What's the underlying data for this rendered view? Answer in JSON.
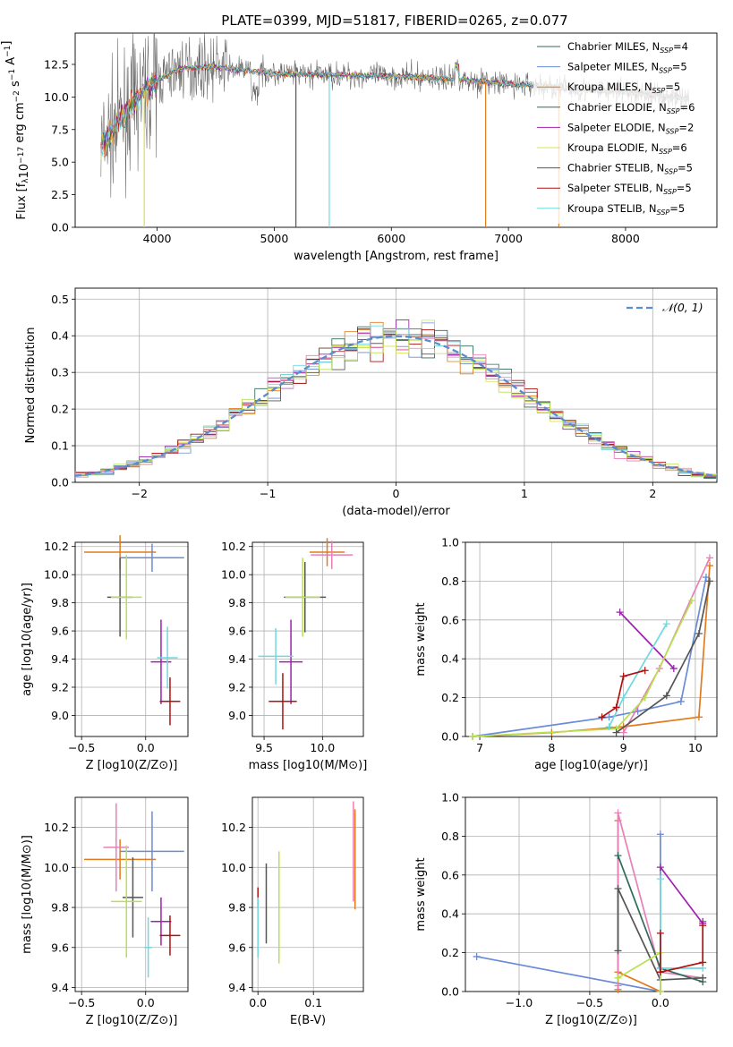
{
  "title": "PLATE=0399, MJD=51817, FIBERID=0265, z=0.077",
  "colors": {
    "chabrier_miles": "#6a8bd8",
    "salpeter_miles": "#e07b1f",
    "kroupa_miles": "#e07b1f",
    "chabrier_elodie": "#2f6b5a",
    "salpeter_elodie": "#a020b0",
    "kroupa_elodie": "#d8e050",
    "chabrier_stelib": "#555555",
    "salpeter_stelib": "#b01010",
    "kroupa_stelib": "#70d8e0",
    "pink": "#e87fb8",
    "lime": "#b8e050",
    "normal_fit": "#5b8bd0",
    "grid": "#b0b0b0"
  },
  "chart_data": [
    {
      "id": "spectrum",
      "type": "line",
      "xlabel": "wavelength [Angstrom, rest frame]",
      "ylabel": "Flux [f_λ10^-17 erg cm^-2 s^-1 A^-1]",
      "xlim": [
        3300,
        8780
      ],
      "ylim": [
        0,
        14.9
      ],
      "xticks": [
        4000,
        5000,
        6000,
        7000,
        8000
      ],
      "yticks": [
        0.0,
        2.5,
        5.0,
        7.5,
        10.0,
        12.5
      ],
      "grid": false,
      "legend_position": "top-right",
      "legend": [
        {
          "label": "Chabrier MILES, N",
          "sub": "SSP",
          "value": "=4",
          "color": "#2f6b5a"
        },
        {
          "label": "Salpeter MILES, N",
          "sub": "SSP",
          "value": "=5",
          "color": "#6a8bd8"
        },
        {
          "label": "Kroupa MILES, N",
          "sub": "SSP",
          "value": "=5",
          "color": "#e07b1f"
        },
        {
          "label": "Chabrier ELODIE, N",
          "sub": "SSP",
          "value": "=6",
          "color": "#2f6b5a"
        },
        {
          "label": "Salpeter ELODIE, N",
          "sub": "SSP",
          "value": "=2",
          "color": "#a020b0"
        },
        {
          "label": "Kroupa ELODIE, N",
          "sub": "SSP",
          "value": "=6",
          "color": "#d8e050"
        },
        {
          "label": "Chabrier STELIB, N",
          "sub": "SSP",
          "value": "=5",
          "color": "#555555"
        },
        {
          "label": "Salpeter STELIB, N",
          "sub": "SSP",
          "value": "=5",
          "color": "#b01010"
        },
        {
          "label": "Kroupa STELIB, N",
          "sub": "SSP",
          "value": "=5",
          "color": "#70d8e0"
        }
      ],
      "data_anchor": {
        "x": [
          3550,
          3700,
          3900,
          4050,
          4200,
          4500,
          5000,
          5500,
          6000,
          6500,
          7000,
          7300,
          7600,
          8000,
          8500
        ],
        "y": [
          6.5,
          8.5,
          10.5,
          11.5,
          12.2,
          12.3,
          11.8,
          11.7,
          11.6,
          11.4,
          11.0,
          10.8,
          10.6,
          10.4,
          9.9
        ]
      }
    },
    {
      "id": "residuals",
      "type": "step",
      "xlabel": "(data-model)/error",
      "ylabel": "Normed distribution",
      "xlim": [
        -2.5,
        2.5
      ],
      "ylim": [
        0,
        0.53
      ],
      "xticks": [
        -2,
        -1,
        0,
        1,
        2
      ],
      "yticks": [
        0.0,
        0.1,
        0.2,
        0.3,
        0.4,
        0.5
      ],
      "grid": true,
      "legend_position": "top-right",
      "legend_label": "𝒩(0, 1)"
    },
    {
      "id": "age_vs_Z",
      "type": "errorbar",
      "xlabel": "Z [log10(Z/Z⊙)]",
      "ylabel": "age  [log10(age/yr)]",
      "xlim": [
        -0.55,
        0.33
      ],
      "ylim": [
        8.85,
        10.23
      ],
      "xticks": [
        -0.5,
        0.0
      ],
      "yticks": [
        9.0,
        9.2,
        9.4,
        9.6,
        9.8,
        10.0,
        10.2
      ],
      "grid": true,
      "points": [
        {
          "x": -0.2,
          "y": 10.16,
          "xerr": 0.28,
          "yerr": 0.12,
          "color": "#e07b1f"
        },
        {
          "x": 0.05,
          "y": 10.12,
          "xerr": 0.25,
          "yerr": 0.1,
          "color": "#6a8bd8"
        },
        {
          "x": -0.2,
          "y": 9.84,
          "xerr": 0.1,
          "yerr": 0.28,
          "color": "#555555"
        },
        {
          "x": -0.15,
          "y": 9.84,
          "xerr": 0.12,
          "yerr": 0.3,
          "color": "#b8e050"
        },
        {
          "x": 0.12,
          "y": 9.38,
          "xerr": 0.08,
          "yerr": 0.3,
          "color": "#a020b0"
        },
        {
          "x": 0.17,
          "y": 9.41,
          "xerr": 0.08,
          "yerr": 0.22,
          "color": "#70d8e0"
        },
        {
          "x": 0.19,
          "y": 9.1,
          "xerr": 0.08,
          "yerr": 0.17,
          "color": "#b01010"
        }
      ]
    },
    {
      "id": "age_vs_mass",
      "type": "errorbar",
      "xlabel": "mass [log10(M/M⊙)]",
      "ylabel": "",
      "xlim": [
        9.4,
        10.35
      ],
      "ylim": [
        8.85,
        10.23
      ],
      "xticks": [
        9.5,
        10.0
      ],
      "yticks": [
        9.0,
        9.2,
        9.4,
        9.6,
        9.8,
        10.0,
        10.2
      ],
      "grid": true,
      "points": [
        {
          "x": 10.04,
          "y": 10.16,
          "xerr": 0.15,
          "yerr": 0.1,
          "color": "#e07b1f"
        },
        {
          "x": 10.08,
          "y": 10.14,
          "xerr": 0.18,
          "yerr": 0.1,
          "color": "#e87fb8"
        },
        {
          "x": 9.85,
          "y": 9.84,
          "xerr": 0.18,
          "yerr": 0.25,
          "color": "#555555"
        },
        {
          "x": 9.83,
          "y": 9.84,
          "xerr": 0.15,
          "yerr": 0.28,
          "color": "#b8e050"
        },
        {
          "x": 9.73,
          "y": 9.38,
          "xerr": 0.1,
          "yerr": 0.3,
          "color": "#a020b0"
        },
        {
          "x": 9.6,
          "y": 9.42,
          "xerr": 0.15,
          "yerr": 0.2,
          "color": "#70d8e0"
        },
        {
          "x": 9.66,
          "y": 9.1,
          "xerr": 0.12,
          "yerr": 0.2,
          "color": "#b01010"
        }
      ]
    },
    {
      "id": "massweight_vs_age",
      "type": "line",
      "xlabel": "age  [log10(age/yr)]",
      "ylabel": "mass weight",
      "xlim": [
        6.8,
        10.3
      ],
      "ylim": [
        0,
        1.0
      ],
      "xticks": [
        7,
        8,
        9,
        10
      ],
      "yticks": [
        0.0,
        0.2,
        0.4,
        0.6,
        0.8,
        1.0
      ],
      "grid": true,
      "series": [
        {
          "color": "#e07b1f",
          "x": [
            6.9,
            8.0,
            9.0,
            10.05,
            10.2
          ],
          "y": [
            0.0,
            0.02,
            0.05,
            0.1,
            0.88
          ]
        },
        {
          "color": "#6a8bd8",
          "x": [
            6.9,
            8.8,
            9.2,
            9.8,
            10.15
          ],
          "y": [
            0.0,
            0.1,
            0.13,
            0.18,
            0.82
          ]
        },
        {
          "color": "#a020b0",
          "x": [
            8.95,
            9.7
          ],
          "y": [
            0.64,
            0.35
          ]
        },
        {
          "color": "#e87fb8",
          "x": [
            9.0,
            9.5,
            10.2
          ],
          "y": [
            0.02,
            0.35,
            0.92
          ]
        },
        {
          "color": "#b8e050",
          "x": [
            6.9,
            8.9,
            9.3,
            9.95
          ],
          "y": [
            0.0,
            0.04,
            0.2,
            0.7
          ]
        },
        {
          "color": "#70d8e0",
          "x": [
            8.8,
            9.0,
            9.6
          ],
          "y": [
            0.05,
            0.2,
            0.58
          ]
        },
        {
          "color": "#555555",
          "x": [
            8.9,
            9.6,
            10.05,
            10.2
          ],
          "y": [
            0.02,
            0.21,
            0.53,
            0.8
          ]
        },
        {
          "color": "#b01010",
          "x": [
            8.7,
            8.9,
            9.0,
            9.3
          ],
          "y": [
            0.1,
            0.15,
            0.31,
            0.34
          ]
        }
      ]
    },
    {
      "id": "mass_vs_Z",
      "type": "errorbar",
      "xlabel": "Z [log10(Z/Z⊙)]",
      "ylabel": "mass [log10(M/M⊙)]",
      "xlim": [
        -0.55,
        0.33
      ],
      "ylim": [
        9.38,
        10.35
      ],
      "xticks": [
        -0.5,
        0.0
      ],
      "yticks": [
        9.4,
        9.6,
        9.8,
        10.0,
        10.2
      ],
      "grid": true,
      "points": [
        {
          "x": -0.2,
          "y": 10.04,
          "xerr": 0.28,
          "yerr": 0.1,
          "color": "#e07b1f"
        },
        {
          "x": 0.05,
          "y": 10.08,
          "xerr": 0.25,
          "yerr": 0.2,
          "color": "#6a8bd8"
        },
        {
          "x": -0.23,
          "y": 10.1,
          "xerr": 0.1,
          "yerr": 0.22,
          "color": "#e87fb8"
        },
        {
          "x": -0.1,
          "y": 9.85,
          "xerr": 0.08,
          "yerr": 0.2,
          "color": "#555555"
        },
        {
          "x": -0.15,
          "y": 9.83,
          "xerr": 0.12,
          "yerr": 0.28,
          "color": "#b8e050"
        },
        {
          "x": 0.12,
          "y": 9.73,
          "xerr": 0.08,
          "yerr": 0.12,
          "color": "#a020b0"
        },
        {
          "x": 0.02,
          "y": 9.6,
          "xerr": 0.03,
          "yerr": 0.15,
          "color": "#70d8e0"
        },
        {
          "x": 0.19,
          "y": 9.66,
          "xerr": 0.08,
          "yerr": 0.1,
          "color": "#b01010"
        }
      ]
    },
    {
      "id": "mass_vs_ebv",
      "type": "errorbar",
      "xlabel": "E(B-V)",
      "ylabel": "",
      "xlim": [
        -0.01,
        0.19
      ],
      "ylim": [
        9.38,
        10.35
      ],
      "xticks": [
        0.0,
        0.1
      ],
      "yticks": [
        9.4,
        9.6,
        9.8,
        10.0,
        10.2
      ],
      "grid": true,
      "points": [
        {
          "x": 0.0,
          "y": 9.85,
          "xerr": 0.0,
          "yerr": 0.05,
          "color": "#b01010"
        },
        {
          "x": 0.0,
          "y": 9.7,
          "xerr": 0.0,
          "yerr": 0.15,
          "color": "#70d8e0"
        },
        {
          "x": 0.015,
          "y": 9.82,
          "xerr": 0.0,
          "yerr": 0.2,
          "color": "#555555"
        },
        {
          "x": 0.038,
          "y": 9.8,
          "xerr": 0.0,
          "yerr": 0.28,
          "color": "#b8e050"
        },
        {
          "x": 0.172,
          "y": 10.08,
          "xerr": 0.0,
          "yerr": 0.25,
          "color": "#e87fb8"
        },
        {
          "x": 0.175,
          "y": 10.04,
          "xerr": 0.0,
          "yerr": 0.25,
          "color": "#e07b1f"
        }
      ]
    },
    {
      "id": "massweight_vs_Z",
      "type": "line",
      "xlabel": "Z [log10(Z/Z⊙)]",
      "ylabel": "mass weight",
      "xlim": [
        -1.38,
        0.4
      ],
      "ylim": [
        0,
        1.0
      ],
      "xticks": [
        -1.0,
        -0.5,
        0.0
      ],
      "yticks": [
        0.0,
        0.2,
        0.4,
        0.6,
        0.8,
        1.0
      ],
      "grid": true,
      "series": [
        {
          "color": "#6a8bd8",
          "x": [
            -1.3,
            0.0,
            0.0
          ],
          "y": [
            0.18,
            0.0,
            0.81
          ]
        },
        {
          "color": "#e07b1f",
          "x": [
            -0.3,
            -0.3,
            -0.3,
            0.0
          ],
          "y": [
            0.01,
            0.88,
            0.1,
            0.0
          ]
        },
        {
          "color": "#e87fb8",
          "x": [
            -0.3,
            -0.3,
            0.0,
            0.3
          ],
          "y": [
            0.03,
            0.92,
            0.1,
            0.07
          ]
        },
        {
          "color": "#2f6b5a",
          "x": [
            -0.3,
            0.0,
            0.3
          ],
          "y": [
            0.7,
            0.12,
            0.05
          ]
        },
        {
          "color": "#555555",
          "x": [
            -0.3,
            -0.3,
            0.0,
            0.3
          ],
          "y": [
            0.21,
            0.53,
            0.06,
            0.07
          ]
        },
        {
          "color": "#b8e050",
          "x": [
            -0.3,
            0.0,
            0.0
          ],
          "y": [
            0.07,
            0.2,
            0.0
          ]
        },
        {
          "color": "#70d8e0",
          "x": [
            0.0,
            0.0,
            0.3
          ],
          "y": [
            0.58,
            0.12,
            0.12
          ]
        },
        {
          "color": "#a020b0",
          "x": [
            0.0,
            0.3,
            0.3
          ],
          "y": [
            0.64,
            0.35,
            0.36
          ]
        },
        {
          "color": "#b01010",
          "x": [
            0.0,
            0.0,
            0.3,
            0.3
          ],
          "y": [
            0.3,
            0.1,
            0.15,
            0.34
          ]
        }
      ]
    }
  ]
}
